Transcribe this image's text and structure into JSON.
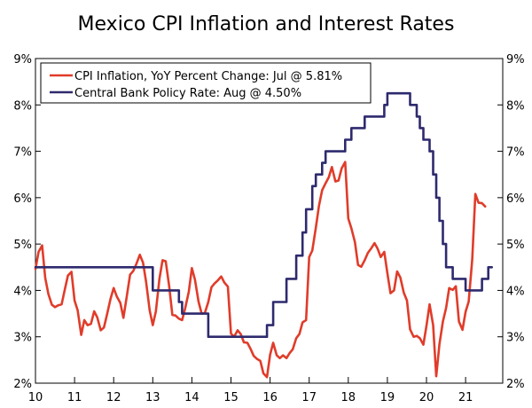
{
  "chart_data": {
    "type": "line",
    "title": "Mexico CPI Inflation and Interest Rates",
    "xlabel": "",
    "ylabel": "",
    "x_ticks": [
      "10",
      "11",
      "12",
      "13",
      "14",
      "15",
      "16",
      "17",
      "18",
      "19",
      "20",
      "21"
    ],
    "y_ticks": [
      "2%",
      "3%",
      "4%",
      "5%",
      "6%",
      "7%",
      "8%",
      "9%"
    ],
    "ylim": [
      2,
      9
    ],
    "xlim": [
      2010.0,
      2021.95
    ],
    "legend_position": "top-left",
    "grid": false,
    "series": [
      {
        "name": "CPI Inflation, YoY Percent Change: Jul @ 5.81%",
        "color": "#e03c2a",
        "points": [
          [
            2010.0,
            4.46
          ],
          [
            2010.08,
            4.83
          ],
          [
            2010.17,
            4.97
          ],
          [
            2010.25,
            4.27
          ],
          [
            2010.33,
            3.92
          ],
          [
            2010.42,
            3.69
          ],
          [
            2010.5,
            3.64
          ],
          [
            2010.58,
            3.68
          ],
          [
            2010.67,
            3.7
          ],
          [
            2010.75,
            4.02
          ],
          [
            2010.83,
            4.32
          ],
          [
            2010.92,
            4.4
          ],
          [
            2011.0,
            3.78
          ],
          [
            2011.08,
            3.57
          ],
          [
            2011.17,
            3.04
          ],
          [
            2011.25,
            3.36
          ],
          [
            2011.33,
            3.25
          ],
          [
            2011.42,
            3.28
          ],
          [
            2011.5,
            3.55
          ],
          [
            2011.58,
            3.42
          ],
          [
            2011.67,
            3.14
          ],
          [
            2011.75,
            3.2
          ],
          [
            2011.83,
            3.48
          ],
          [
            2011.92,
            3.82
          ],
          [
            2012.0,
            4.05
          ],
          [
            2012.08,
            3.87
          ],
          [
            2012.17,
            3.73
          ],
          [
            2012.25,
            3.41
          ],
          [
            2012.33,
            3.85
          ],
          [
            2012.42,
            4.34
          ],
          [
            2012.5,
            4.42
          ],
          [
            2012.58,
            4.57
          ],
          [
            2012.67,
            4.77
          ],
          [
            2012.75,
            4.6
          ],
          [
            2012.83,
            4.18
          ],
          [
            2012.92,
            3.57
          ],
          [
            2013.0,
            3.25
          ],
          [
            2013.08,
            3.55
          ],
          [
            2013.17,
            4.25
          ],
          [
            2013.25,
            4.65
          ],
          [
            2013.33,
            4.63
          ],
          [
            2013.42,
            4.09
          ],
          [
            2013.5,
            3.47
          ],
          [
            2013.58,
            3.46
          ],
          [
            2013.67,
            3.39
          ],
          [
            2013.75,
            3.36
          ],
          [
            2013.83,
            3.62
          ],
          [
            2013.92,
            3.97
          ],
          [
            2014.0,
            4.48
          ],
          [
            2014.08,
            4.23
          ],
          [
            2014.17,
            3.76
          ],
          [
            2014.25,
            3.5
          ],
          [
            2014.33,
            3.51
          ],
          [
            2014.42,
            3.75
          ],
          [
            2014.5,
            4.07
          ],
          [
            2014.58,
            4.15
          ],
          [
            2014.67,
            4.22
          ],
          [
            2014.75,
            4.3
          ],
          [
            2014.83,
            4.17
          ],
          [
            2014.92,
            4.08
          ],
          [
            2015.0,
            3.07
          ],
          [
            2015.08,
            3.0
          ],
          [
            2015.17,
            3.14
          ],
          [
            2015.25,
            3.06
          ],
          [
            2015.33,
            2.88
          ],
          [
            2015.42,
            2.87
          ],
          [
            2015.5,
            2.74
          ],
          [
            2015.58,
            2.59
          ],
          [
            2015.67,
            2.52
          ],
          [
            2015.75,
            2.48
          ],
          [
            2015.83,
            2.21
          ],
          [
            2015.92,
            2.13
          ],
          [
            2016.0,
            2.61
          ],
          [
            2016.08,
            2.87
          ],
          [
            2016.17,
            2.6
          ],
          [
            2016.25,
            2.54
          ],
          [
            2016.33,
            2.6
          ],
          [
            2016.42,
            2.54
          ],
          [
            2016.5,
            2.65
          ],
          [
            2016.58,
            2.73
          ],
          [
            2016.67,
            2.97
          ],
          [
            2016.75,
            3.06
          ],
          [
            2016.83,
            3.31
          ],
          [
            2016.92,
            3.36
          ],
          [
            2017.0,
            4.72
          ],
          [
            2017.08,
            4.86
          ],
          [
            2017.17,
            5.35
          ],
          [
            2017.25,
            5.82
          ],
          [
            2017.33,
            6.16
          ],
          [
            2017.42,
            6.31
          ],
          [
            2017.5,
            6.44
          ],
          [
            2017.58,
            6.66
          ],
          [
            2017.67,
            6.35
          ],
          [
            2017.75,
            6.37
          ],
          [
            2017.83,
            6.63
          ],
          [
            2017.92,
            6.77
          ],
          [
            2018.0,
            5.55
          ],
          [
            2018.08,
            5.34
          ],
          [
            2018.17,
            5.04
          ],
          [
            2018.25,
            4.55
          ],
          [
            2018.33,
            4.51
          ],
          [
            2018.42,
            4.65
          ],
          [
            2018.5,
            4.81
          ],
          [
            2018.58,
            4.9
          ],
          [
            2018.67,
            5.02
          ],
          [
            2018.75,
            4.9
          ],
          [
            2018.83,
            4.72
          ],
          [
            2018.92,
            4.83
          ],
          [
            2019.0,
            4.37
          ],
          [
            2019.08,
            3.94
          ],
          [
            2019.17,
            4.0
          ],
          [
            2019.25,
            4.41
          ],
          [
            2019.33,
            4.28
          ],
          [
            2019.42,
            3.95
          ],
          [
            2019.5,
            3.78
          ],
          [
            2019.58,
            3.16
          ],
          [
            2019.67,
            3.0
          ],
          [
            2019.75,
            3.02
          ],
          [
            2019.83,
            2.97
          ],
          [
            2019.92,
            2.83
          ],
          [
            2020.0,
            3.24
          ],
          [
            2020.08,
            3.7
          ],
          [
            2020.17,
            3.25
          ],
          [
            2020.25,
            2.15
          ],
          [
            2020.33,
            2.84
          ],
          [
            2020.42,
            3.33
          ],
          [
            2020.5,
            3.62
          ],
          [
            2020.58,
            4.05
          ],
          [
            2020.67,
            4.01
          ],
          [
            2020.75,
            4.09
          ],
          [
            2020.83,
            3.33
          ],
          [
            2020.92,
            3.15
          ],
          [
            2021.0,
            3.54
          ],
          [
            2021.08,
            3.76
          ],
          [
            2021.17,
            4.67
          ],
          [
            2021.25,
            6.08
          ],
          [
            2021.33,
            5.89
          ],
          [
            2021.42,
            5.88
          ],
          [
            2021.5,
            5.81
          ]
        ]
      },
      {
        "name": "Central Bank Policy Rate: Aug @ 4.50%",
        "color": "#2e2a6e",
        "points": [
          [
            2010.0,
            4.5
          ],
          [
            2013.0,
            4.5
          ],
          [
            2013.0,
            4.0
          ],
          [
            2013.67,
            4.0
          ],
          [
            2013.67,
            3.75
          ],
          [
            2013.75,
            3.75
          ],
          [
            2013.75,
            3.5
          ],
          [
            2014.42,
            3.5
          ],
          [
            2014.42,
            3.0
          ],
          [
            2015.92,
            3.0
          ],
          [
            2015.92,
            3.25
          ],
          [
            2016.08,
            3.25
          ],
          [
            2016.08,
            3.75
          ],
          [
            2016.42,
            3.75
          ],
          [
            2016.42,
            4.25
          ],
          [
            2016.67,
            4.25
          ],
          [
            2016.67,
            4.75
          ],
          [
            2016.83,
            4.75
          ],
          [
            2016.83,
            5.25
          ],
          [
            2016.92,
            5.25
          ],
          [
            2016.92,
            5.75
          ],
          [
            2017.08,
            5.75
          ],
          [
            2017.08,
            6.25
          ],
          [
            2017.17,
            6.25
          ],
          [
            2017.17,
            6.5
          ],
          [
            2017.33,
            6.5
          ],
          [
            2017.33,
            6.75
          ],
          [
            2017.42,
            6.75
          ],
          [
            2017.42,
            7.0
          ],
          [
            2017.92,
            7.0
          ],
          [
            2017.92,
            7.25
          ],
          [
            2018.08,
            7.25
          ],
          [
            2018.08,
            7.5
          ],
          [
            2018.42,
            7.5
          ],
          [
            2018.42,
            7.75
          ],
          [
            2018.92,
            7.75
          ],
          [
            2018.92,
            8.0
          ],
          [
            2019.0,
            8.0
          ],
          [
            2019.0,
            8.25
          ],
          [
            2019.58,
            8.25
          ],
          [
            2019.58,
            8.0
          ],
          [
            2019.75,
            8.0
          ],
          [
            2019.75,
            7.75
          ],
          [
            2019.83,
            7.75
          ],
          [
            2019.83,
            7.5
          ],
          [
            2019.92,
            7.5
          ],
          [
            2019.92,
            7.25
          ],
          [
            2020.08,
            7.25
          ],
          [
            2020.08,
            7.0
          ],
          [
            2020.17,
            7.0
          ],
          [
            2020.17,
            6.5
          ],
          [
            2020.25,
            6.5
          ],
          [
            2020.25,
            6.0
          ],
          [
            2020.33,
            6.0
          ],
          [
            2020.33,
            5.5
          ],
          [
            2020.42,
            5.5
          ],
          [
            2020.42,
            5.0
          ],
          [
            2020.5,
            5.0
          ],
          [
            2020.5,
            4.5
          ],
          [
            2020.67,
            4.5
          ],
          [
            2020.67,
            4.25
          ],
          [
            2021.0,
            4.25
          ],
          [
            2021.0,
            4.0
          ],
          [
            2021.42,
            4.0
          ],
          [
            2021.42,
            4.25
          ],
          [
            2021.58,
            4.25
          ],
          [
            2021.58,
            4.5
          ],
          [
            2021.67,
            4.5
          ]
        ]
      }
    ]
  }
}
